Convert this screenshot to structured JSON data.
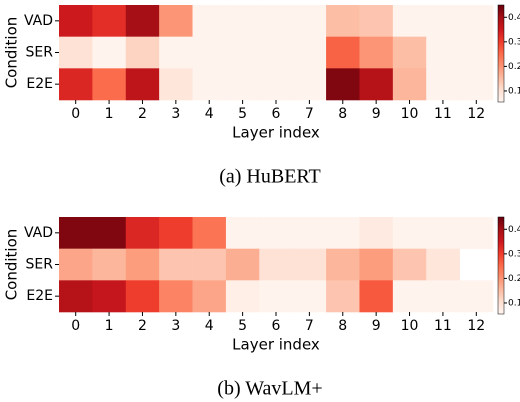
{
  "chart_data": [
    {
      "type": "heatmap",
      "title": "(a) HuBERT",
      "xlabel": "Layer index",
      "ylabel": "Condition",
      "categories": [
        "0",
        "1",
        "2",
        "3",
        "4",
        "5",
        "6",
        "7",
        "8",
        "9",
        "10",
        "11",
        "12"
      ],
      "rows": [
        "VAD",
        "SER",
        "E2E"
      ],
      "values": [
        [
          0.35,
          0.32,
          0.4,
          0.2,
          0.06,
          0.06,
          0.06,
          0.06,
          0.15,
          0.14,
          0.06,
          0.06,
          0.06
        ],
        [
          0.1,
          0.06,
          0.12,
          0.06,
          0.06,
          0.06,
          0.06,
          0.06,
          0.26,
          0.2,
          0.15,
          0.06,
          0.06
        ],
        [
          0.33,
          0.25,
          0.37,
          0.09,
          0.06,
          0.06,
          0.06,
          0.06,
          0.43,
          0.38,
          0.16,
          0.06,
          0.06
        ]
      ],
      "zlim": [
        0.055,
        0.45
      ],
      "zticks": [
        0.1,
        0.2,
        0.3,
        0.4
      ],
      "colormap": [
        "#fff5f0",
        "#fee0d2",
        "#fcbba1",
        "#fc9272",
        "#fb6a4a",
        "#ef3b2c",
        "#cb181d",
        "#a50f15",
        "#67000d"
      ]
    },
    {
      "type": "heatmap",
      "title": "(b) WavLM+",
      "xlabel": "Layer index",
      "ylabel": "Condition",
      "categories": [
        "0",
        "1",
        "2",
        "3",
        "4",
        "5",
        "6",
        "7",
        "8",
        "9",
        "10",
        "11",
        "12"
      ],
      "rows": [
        "VAD",
        "SER",
        "E2E"
      ],
      "values": [
        [
          0.43,
          0.43,
          0.33,
          0.3,
          0.24,
          0.06,
          0.06,
          0.06,
          0.06,
          0.08,
          0.06,
          0.06,
          0.06
        ],
        [
          0.18,
          0.16,
          0.19,
          0.14,
          0.14,
          0.17,
          0.1,
          0.1,
          0.16,
          0.19,
          0.14,
          0.09,
          null
        ],
        [
          0.38,
          0.36,
          0.3,
          0.22,
          0.18,
          0.07,
          0.06,
          0.06,
          0.14,
          0.27,
          0.06,
          0.06,
          0.06
        ]
      ],
      "zlim": [
        0.055,
        0.45
      ],
      "zticks": [
        0.1,
        0.2,
        0.3,
        0.4
      ],
      "colormap": [
        "#fff5f0",
        "#fee0d2",
        "#fcbba1",
        "#fc9272",
        "#fb6a4a",
        "#ef3b2c",
        "#cb181d",
        "#a50f15",
        "#67000d"
      ]
    }
  ]
}
